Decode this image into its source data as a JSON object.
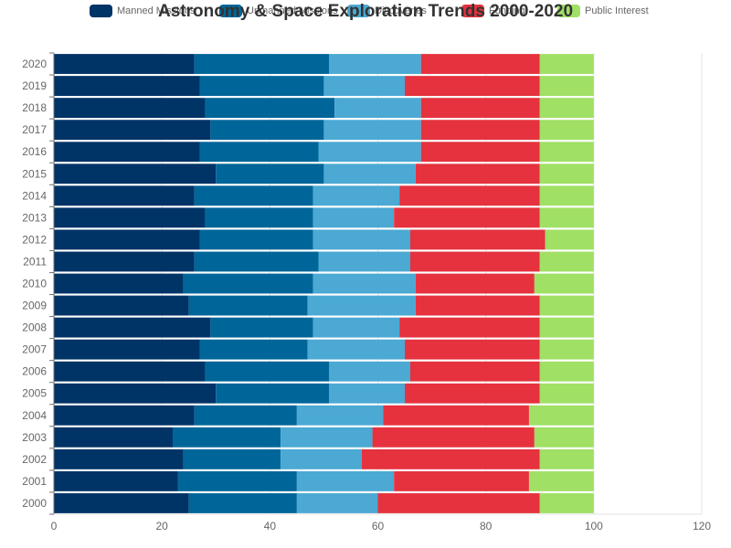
{
  "chart_data": {
    "type": "bar",
    "orientation": "horizontal",
    "stacked": true,
    "title": "Astronomy & Space Exploration Trends 2000-2020",
    "categories": [
      "2000",
      "2001",
      "2002",
      "2003",
      "2004",
      "2005",
      "2006",
      "2007",
      "2008",
      "2009",
      "2010",
      "2011",
      "2012",
      "2013",
      "2014",
      "2015",
      "2016",
      "2017",
      "2018",
      "2019",
      "2020"
    ],
    "series": [
      {
        "name": "Manned Missions",
        "color": "#003366",
        "values": [
          25,
          23,
          24,
          22,
          26,
          30,
          28,
          27,
          29,
          25,
          24,
          26,
          27,
          28,
          26,
          30,
          27,
          29,
          28,
          27,
          26
        ]
      },
      {
        "name": "Unmanned Missions",
        "color": "#006699",
        "values": [
          20,
          22,
          18,
          20,
          19,
          21,
          23,
          20,
          19,
          22,
          24,
          23,
          21,
          20,
          22,
          20,
          22,
          21,
          24,
          23,
          25
        ]
      },
      {
        "name": "Discoveries",
        "color": "#4BA9D3",
        "values": [
          15,
          18,
          15,
          17,
          16,
          14,
          15,
          18,
          16,
          20,
          19,
          17,
          18,
          15,
          16,
          17,
          19,
          18,
          16,
          15,
          17
        ]
      },
      {
        "name": "Funding",
        "color": "#E5323E",
        "values": [
          30,
          25,
          33,
          30,
          27,
          25,
          24,
          25,
          26,
          23,
          22,
          24,
          25,
          27,
          26,
          23,
          22,
          22,
          22,
          25,
          22
        ]
      },
      {
        "name": "Public Interest",
        "color": "#A0E065",
        "values": [
          10,
          12,
          10,
          11,
          12,
          10,
          10,
          10,
          10,
          10,
          11,
          10,
          9,
          10,
          10,
          10,
          10,
          10,
          10,
          10,
          10
        ]
      }
    ],
    "xlim": [
      0,
      120
    ],
    "xticks": [
      0,
      20,
      40,
      60,
      80,
      100,
      120
    ],
    "legend_position": "top",
    "grid": true
  }
}
